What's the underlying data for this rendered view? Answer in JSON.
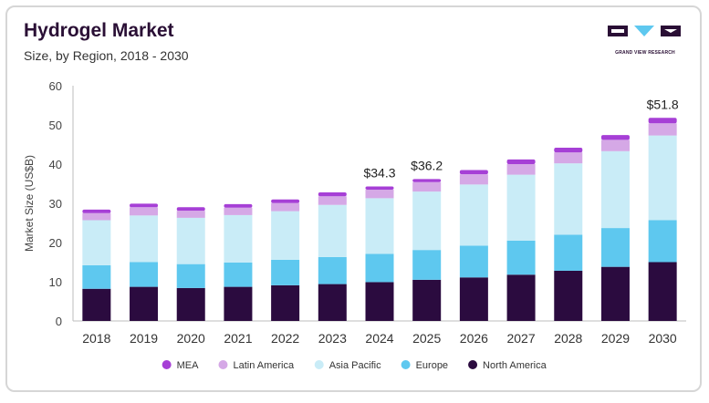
{
  "header": {
    "title": "Hydrogel Market",
    "subtitle": "Size, by Region, 2018 - 2030"
  },
  "logo": {
    "text": "GRAND VIEW RESEARCH",
    "icon": "grand-view-research-logo",
    "color": "#2a0f35"
  },
  "chart_data": {
    "type": "bar",
    "stacked": true,
    "title": "Hydrogel Market",
    "subtitle": "Size, by Region, 2018 - 2030",
    "xlabel": "",
    "ylabel": "Market Size (US$B)",
    "ylim": [
      0,
      60
    ],
    "yticks": [
      0,
      10,
      20,
      30,
      40,
      50,
      60
    ],
    "grid": false,
    "legend_position": "bottom",
    "categories": [
      "2018",
      "2019",
      "2020",
      "2021",
      "2022",
      "2023",
      "2024",
      "2025",
      "2026",
      "2027",
      "2028",
      "2029",
      "2030"
    ],
    "series": [
      {
        "name": "North America",
        "color": "#2b0b3f",
        "values": [
          8.2,
          8.7,
          8.4,
          8.7,
          9.1,
          9.4,
          9.9,
          10.5,
          11.1,
          11.8,
          12.8,
          13.8,
          15.0
        ]
      },
      {
        "name": "Europe",
        "color": "#5ec8ef",
        "values": [
          6.0,
          6.3,
          6.1,
          6.2,
          6.5,
          6.9,
          7.2,
          7.6,
          8.1,
          8.7,
          9.2,
          9.9,
          10.7
        ]
      },
      {
        "name": "Asia Pacific",
        "color": "#c9ecf7",
        "values": [
          11.5,
          11.9,
          11.8,
          12.1,
          12.4,
          13.3,
          14.2,
          14.9,
          15.6,
          16.8,
          18.2,
          19.6,
          21.6
        ]
      },
      {
        "name": "Latin America",
        "color": "#d5a8e6",
        "values": [
          1.8,
          2.1,
          1.8,
          1.9,
          2.1,
          2.2,
          2.2,
          2.4,
          2.6,
          2.7,
          2.8,
          2.9,
          3.1
        ]
      },
      {
        "name": "MEA",
        "color": "#a63fd6",
        "values": [
          0.9,
          0.9,
          0.9,
          0.9,
          0.9,
          1.0,
          0.8,
          0.8,
          1.1,
          1.2,
          1.2,
          1.2,
          1.4
        ]
      }
    ],
    "annotations": [
      {
        "category": "2024",
        "text": "$34.3",
        "value": 34.3
      },
      {
        "category": "2025",
        "text": "$36.2",
        "value": 36.2
      },
      {
        "category": "2030",
        "text": "$51.8",
        "value": 51.8
      }
    ],
    "legend_order": [
      "MEA",
      "Latin America",
      "Asia Pacific",
      "Europe",
      "North America"
    ]
  }
}
